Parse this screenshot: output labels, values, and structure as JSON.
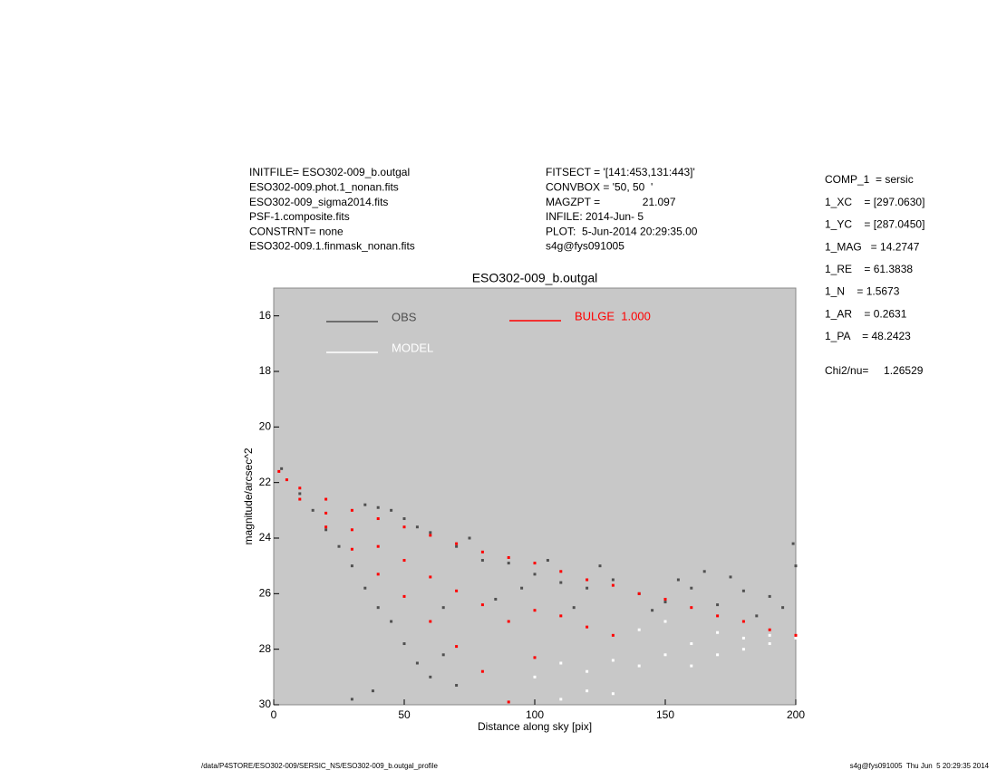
{
  "header": {
    "left": [
      "INITFILE= ESO302-009_b.outgal",
      "ESO302-009.phot.1_nonan.fits",
      "ESO302-009_sigma2014.fits",
      "PSF-1.composite.fits",
      "CONSTRNT= none",
      "ESO302-009.1.finmask_nonan.fits"
    ],
    "middle": [
      "FITSECT = '[141:453,131:443]'",
      "CONVBOX = '50, 50  '",
      "MAGZPT =              21.097",
      "INFILE: 2014-Jun- 5",
      "PLOT:  5-Jun-2014 20:29:35.00",
      "s4g@fys091005"
    ],
    "right": [
      "COMP_1  = sersic",
      "1_XC    = [297.0630]",
      "1_YC    = [287.0450]",
      "1_MAG   = 14.2747",
      "1_RE    = 61.3838",
      "1_N    = 1.5673",
      "1_AR    = 0.2631",
      "1_PA    = 48.2423"
    ],
    "chi2": "Chi2/nu=     1.26529"
  },
  "footer": {
    "left": "/data/P4STORE/ESO302-009/SERSIC_NS/ESO302-009_b.outgal_profile",
    "right": "s4g@fys091005  Thu Jun  5 20:29:35 2014"
  },
  "chart_data": {
    "type": "scatter",
    "title": "ESO302-009_b.outgal",
    "x_label": "Distance along sky [pix]",
    "y_label": "magnitude/arcsec^2",
    "xlim": [
      0,
      200
    ],
    "xticks": [
      0,
      50,
      100,
      150,
      200
    ],
    "ylim": [
      15,
      30
    ],
    "yticks": [
      16,
      18,
      20,
      22,
      24,
      26,
      28,
      30
    ],
    "y_inverted": true,
    "background": "#c8c8c8",
    "series": [
      {
        "name": "OBS",
        "color": "#505050",
        "x": [
          3,
          10,
          15,
          20,
          25,
          30,
          35,
          40,
          45,
          50,
          55,
          60,
          65,
          70,
          35,
          40,
          45,
          50,
          55,
          60,
          70,
          75,
          80,
          90,
          100,
          110,
          120,
          130,
          140,
          150,
          160,
          170,
          180,
          190,
          200,
          199,
          185,
          175,
          155,
          125,
          115,
          95,
          85,
          65,
          30,
          38,
          145,
          165,
          195,
          105
        ],
        "values": [
          21.5,
          22.4,
          23.0,
          23.7,
          24.3,
          25.0,
          25.8,
          26.5,
          27.0,
          27.8,
          28.5,
          29.0,
          28.2,
          29.3,
          22.8,
          22.9,
          23.0,
          23.3,
          23.6,
          23.8,
          24.3,
          24.0,
          24.8,
          24.9,
          25.3,
          25.6,
          25.8,
          25.5,
          26.0,
          26.3,
          25.8,
          26.4,
          25.9,
          26.1,
          25.0,
          24.2,
          26.8,
          25.4,
          25.5,
          25.0,
          26.5,
          25.8,
          26.2,
          26.5,
          29.8,
          29.5,
          26.6,
          25.2,
          26.5,
          24.8
        ]
      },
      {
        "name": "MODEL",
        "color": "#ffffff",
        "x": [
          100,
          110,
          120,
          130,
          140,
          140,
          150,
          150,
          160,
          160,
          170,
          170,
          180,
          180,
          190,
          190,
          200,
          120,
          130,
          110
        ],
        "values": [
          29.0,
          28.5,
          28.8,
          28.4,
          28.6,
          27.3,
          28.2,
          27.0,
          27.8,
          28.6,
          27.4,
          28.2,
          27.6,
          28.0,
          27.5,
          27.8,
          27.6,
          29.5,
          29.6,
          29.8
        ]
      },
      {
        "name": "BULGE  1.000",
        "color": "#ff0000",
        "x": [
          2,
          5,
          10,
          10,
          20,
          20,
          20,
          30,
          30,
          30,
          40,
          40,
          40,
          50,
          50,
          50,
          60,
          60,
          60,
          70,
          70,
          70,
          80,
          80,
          80,
          90,
          90,
          90,
          100,
          100,
          100,
          110,
          110,
          120,
          120,
          130,
          130,
          140,
          150,
          160,
          170,
          180,
          190,
          200
        ],
        "values": [
          21.6,
          21.9,
          22.2,
          22.6,
          22.6,
          23.1,
          23.6,
          23.0,
          23.7,
          24.4,
          23.3,
          24.3,
          25.3,
          23.6,
          24.8,
          26.1,
          23.9,
          25.4,
          27.0,
          24.2,
          25.9,
          27.9,
          24.5,
          26.4,
          28.8,
          24.7,
          27.0,
          29.9,
          24.9,
          26.6,
          28.3,
          25.2,
          26.8,
          25.5,
          27.2,
          25.7,
          27.5,
          26.0,
          26.2,
          26.5,
          26.8,
          27.0,
          27.3,
          27.5
        ]
      }
    ]
  }
}
